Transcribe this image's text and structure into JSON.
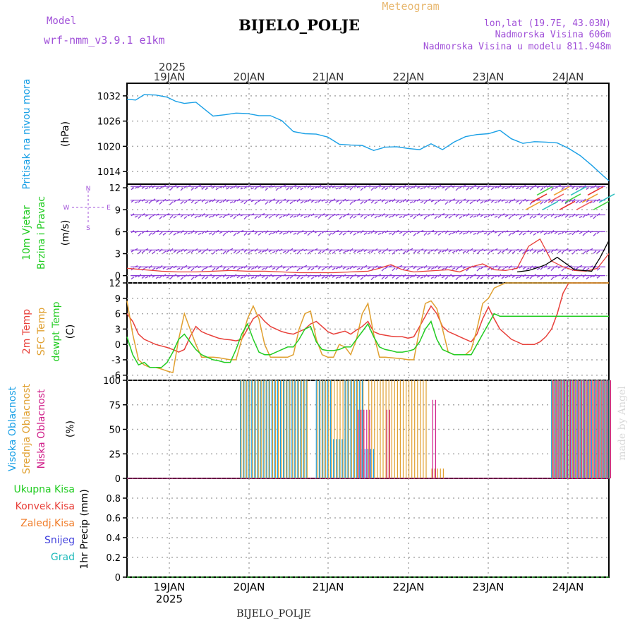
{
  "header": {
    "title": "BIJELO_POLJE",
    "model_label": "Model",
    "model_name": "wrf-nmm_v3.9.1 e1km",
    "product": "Meteogram",
    "location": "lon,lat (19.7E, 43.03N)",
    "altitude": "Nadmorska Visina 606m",
    "model_altitude": "Nadmorska Visina u modelu 811.948m",
    "footer": "BIJELO_POLJE",
    "credit": "made by Angel"
  },
  "time_axis": {
    "year": "2025",
    "days": [
      "19JAN",
      "20JAN",
      "21JAN",
      "22JAN",
      "23JAN",
      "24JAN"
    ],
    "colors": {
      "pressure": "#1aa0e6",
      "temp2m": "#e8403a",
      "sfc": "#e0a030",
      "dewpt": "#22cc22",
      "high": "#1aa0e6",
      "mid": "#e0a030",
      "low": "#d0208a",
      "wind_red": "#e8403a",
      "wind_black": "#000000",
      "barbs": "#8a3cd6"
    }
  },
  "panels": {
    "pressure": {
      "label_line1": "Pritisak na nivou mora",
      "unit": "(hPa)",
      "ticks": [
        "1032",
        "1026",
        "1020",
        "1014"
      ]
    },
    "wind": {
      "label_line1": "10m Vjetar",
      "label_line2": "Brzina i Pravac",
      "unit": "(m/s)",
      "ticks": [
        "12",
        "9",
        "6",
        "3",
        "0"
      ],
      "compass_n": "N",
      "compass_s": "S",
      "compass_w": "W",
      "compass_e": "E"
    },
    "temp": {
      "label_2m": "2m Temp",
      "label_sfc": "SFC Temp",
      "label_dew": "dewpt Temp",
      "unit": "(C)",
      "ticks": [
        "12",
        "9",
        "6",
        "3",
        "0",
        "-3",
        "-6"
      ]
    },
    "cloud": {
      "label_high": "Visoka Oblacnost",
      "label_mid": "Srednja Oblacnost",
      "label_low": "Niska Oblacnost",
      "unit": "(%)",
      "ticks": [
        "100",
        "75",
        "50",
        "25",
        "0"
      ]
    },
    "precip": {
      "labels": [
        "Ukupna Kisa",
        "Konvek.Kisa",
        "Zaledj.Kisa",
        "Snijeg",
        "Grad"
      ],
      "label_colors": [
        "#22cc22",
        "#e8403a",
        "#f07c28",
        "#4444dd",
        "#22bbbb"
      ],
      "unit": "1hr Precip (mm)",
      "ticks": [
        "0.8",
        "0.6",
        "0.4",
        "0.2",
        "0"
      ]
    }
  },
  "chart_data": [
    {
      "type": "line",
      "name": "pressure",
      "ylim": [
        1011,
        1035
      ],
      "series": [
        {
          "name": "Pritisak na nivou mora",
          "x": [
            0,
            3,
            6,
            10,
            14,
            17,
            20,
            24,
            28,
            30,
            34,
            38,
            42,
            46,
            50,
            54,
            58,
            62,
            66,
            70,
            74,
            78,
            82,
            86,
            90,
            94,
            98,
            102,
            106,
            110,
            114,
            118,
            122,
            126,
            130,
            134,
            138,
            142,
            146,
            150,
            154,
            158,
            162,
            166,
            168
          ],
          "values": [
            1031.2,
            1031.0,
            1032.3,
            1032.2,
            1031.7,
            1030.7,
            1030.2,
            1030.5,
            1028.3,
            1027.2,
            1027.5,
            1027.9,
            1027.8,
            1027.3,
            1027.3,
            1026.1,
            1023.5,
            1023.0,
            1022.9,
            1022.2,
            1020.5,
            1020.3,
            1020.2,
            1019.0,
            1019.8,
            1019.9,
            1019.5,
            1019.2,
            1020.6,
            1019.2,
            1021.0,
            1022.3,
            1022.8,
            1023.0,
            1023.8,
            1021.8,
            1020.7,
            1021.1,
            1021.0,
            1020.8,
            1019.5,
            1017.8,
            1015.5,
            1013.0,
            1011.8
          ]
        }
      ]
    },
    {
      "type": "line",
      "name": "wind",
      "ylim": [
        -1,
        12.5
      ],
      "series": [
        {
          "name": "red",
          "x": [
            0,
            6,
            12,
            18,
            24,
            30,
            36,
            42,
            48,
            54,
            60,
            66,
            72,
            78,
            84,
            88,
            92,
            96,
            100,
            104,
            108,
            112,
            116,
            120,
            124,
            128,
            132,
            136,
            138,
            140,
            144,
            148,
            152,
            156,
            160,
            164,
            168
          ],
          "values": [
            1.0,
            0.8,
            0.6,
            0.5,
            0.5,
            0.6,
            0.7,
            0.6,
            0.6,
            0.5,
            0.4,
            0.4,
            0.4,
            0.5,
            0.6,
            1.0,
            1.5,
            0.8,
            0.5,
            0.6,
            0.7,
            0.8,
            0.5,
            1.2,
            1.6,
            0.8,
            0.7,
            1.0,
            2.5,
            4.0,
            5.0,
            2.0,
            1.2,
            0.7,
            0.6,
            1.0,
            3.0
          ]
        },
        {
          "name": "black",
          "x": [
            136,
            140,
            144,
            146,
            150,
            156,
            162,
            165,
            168
          ],
          "values": [
            0.5,
            0.7,
            1.2,
            1.5,
            2.5,
            0.8,
            0.6,
            2.5,
            4.8
          ]
        }
      ]
    },
    {
      "type": "line",
      "name": "temp",
      "ylim": [
        -7,
        12
      ],
      "series": [
        {
          "name": "2m Temp",
          "x": [
            0,
            2,
            4,
            6,
            8,
            10,
            12,
            14,
            16,
            18,
            20,
            22,
            24,
            26,
            28,
            30,
            32,
            34,
            36,
            38,
            40,
            42,
            44,
            46,
            48,
            50,
            52,
            54,
            56,
            58,
            60,
            62,
            64,
            66,
            68,
            70,
            72,
            74,
            76,
            78,
            80,
            82,
            84,
            86,
            88,
            90,
            92,
            94,
            96,
            98,
            100,
            102,
            104,
            106,
            108,
            110,
            112,
            114,
            116,
            118,
            120,
            122,
            124,
            126,
            128,
            130,
            132,
            134,
            136,
            138,
            140,
            142,
            144,
            146,
            148,
            150,
            152,
            154,
            156,
            158,
            160,
            162,
            164,
            166,
            168
          ],
          "values": [
            6.0,
            4.5,
            2.0,
            1.0,
            0.5,
            0.0,
            -0.3,
            -0.6,
            -1.0,
            -1.5,
            -1.0,
            1.5,
            3.5,
            2.5,
            2.0,
            1.6,
            1.2,
            1.0,
            0.9,
            0.7,
            1.0,
            3.0,
            5.0,
            5.8,
            4.5,
            3.5,
            3.0,
            2.5,
            2.2,
            2.0,
            2.5,
            3.0,
            4.0,
            4.5,
            3.5,
            2.5,
            2.0,
            2.3,
            2.6,
            2.0,
            2.8,
            3.5,
            4.5,
            2.5,
            2.0,
            1.8,
            1.6,
            1.5,
            1.5,
            1.2,
            1.5,
            3.5,
            5.5,
            7.5,
            6.0,
            3.5,
            2.5,
            2.0,
            1.5,
            1.0,
            0.5,
            2.0,
            5.0,
            7.3,
            5.0,
            3.0,
            2.0,
            1.0,
            0.5,
            0.0,
            0.0,
            0.0,
            0.5,
            1.5,
            3.0,
            6.0,
            10.0,
            12.0,
            12.0,
            12.0,
            12.0,
            12.0,
            12.0,
            12.0,
            12.0
          ]
        },
        {
          "name": "SFC Temp",
          "x": [
            0,
            2,
            4,
            6,
            8,
            10,
            12,
            14,
            16,
            18,
            20,
            22,
            24,
            26,
            28,
            30,
            32,
            34,
            36,
            38,
            40,
            42,
            44,
            46,
            48,
            50,
            52,
            54,
            56,
            58,
            60,
            62,
            64,
            66,
            68,
            70,
            72,
            74,
            76,
            78,
            80,
            82,
            84,
            86,
            88,
            90,
            92,
            94,
            96,
            98,
            100,
            102,
            104,
            106,
            108,
            110,
            112,
            114,
            116,
            118,
            120,
            122,
            124,
            126,
            128,
            130,
            132,
            134,
            136,
            138,
            140,
            142,
            144,
            146,
            148,
            150,
            152,
            154,
            156,
            158,
            160,
            162,
            164,
            166,
            168
          ],
          "values": [
            8.5,
            2.0,
            -3.0,
            -4.0,
            -4.5,
            -4.5,
            -4.8,
            -5.2,
            -5.5,
            1.0,
            6.0,
            3.0,
            0.0,
            -2.5,
            -2.5,
            -2.5,
            -2.6,
            -2.8,
            -3.0,
            -3.0,
            1.0,
            5.0,
            7.5,
            5.0,
            0.0,
            -2.5,
            -2.5,
            -2.5,
            -2.5,
            -2.0,
            3.0,
            6.0,
            6.5,
            1.0,
            -2.0,
            -2.5,
            -2.5,
            0.0,
            -0.5,
            -2.0,
            1.0,
            6.0,
            8.0,
            2.0,
            -2.5,
            -2.5,
            -2.6,
            -2.7,
            -2.8,
            -3.0,
            -3.0,
            3.0,
            8.0,
            8.5,
            7.0,
            3.0,
            -1.5,
            -2.0,
            -2.0,
            -2.0,
            -1.0,
            3.0,
            8.0,
            9.0,
            11.0,
            11.5,
            12.0,
            12.0,
            12.0,
            12.0,
            12.0,
            12.0,
            12.0,
            12.0,
            12.0,
            12.0,
            12.0,
            12.0,
            12.0,
            12.0,
            12.0,
            12.0,
            12.0,
            12.0,
            12.0
          ]
        },
        {
          "name": "dewpt Temp",
          "x": [
            0,
            2,
            4,
            6,
            8,
            10,
            12,
            14,
            16,
            18,
            20,
            22,
            24,
            26,
            28,
            30,
            32,
            34,
            36,
            38,
            40,
            42,
            44,
            46,
            48,
            50,
            52,
            54,
            56,
            58,
            60,
            62,
            64,
            66,
            68,
            70,
            72,
            74,
            76,
            78,
            80,
            82,
            84,
            86,
            88,
            90,
            92,
            94,
            96,
            98,
            100,
            102,
            104,
            106,
            108,
            110,
            112,
            114,
            116,
            118,
            120,
            122,
            124,
            126,
            128,
            130,
            132,
            134,
            136,
            138,
            140,
            142,
            144,
            146,
            148,
            150,
            152,
            154,
            156,
            158,
            160,
            162,
            164,
            166,
            168
          ],
          "values": [
            1.5,
            -2.0,
            -4.0,
            -3.5,
            -4.5,
            -4.5,
            -4.5,
            -3.5,
            -1.5,
            1.0,
            2.0,
            0.5,
            -1.0,
            -2.0,
            -2.5,
            -3.0,
            -3.2,
            -3.5,
            -3.5,
            -1.0,
            2.0,
            4.0,
            1.0,
            -1.5,
            -2.0,
            -2.0,
            -1.5,
            -1.0,
            -0.5,
            -0.5,
            1.0,
            3.0,
            3.5,
            0.5,
            -1.0,
            -1.2,
            -1.2,
            -1.0,
            -0.5,
            -0.5,
            1.0,
            2.5,
            4.0,
            1.5,
            -0.5,
            -1.0,
            -1.2,
            -1.5,
            -1.5,
            -1.3,
            -1.0,
            0.5,
            3.0,
            4.5,
            1.0,
            -1.0,
            -1.5,
            -2.0,
            -2.0,
            -2.0,
            -2.0,
            0.0,
            2.0,
            4.0,
            6.0,
            5.5,
            5.5,
            5.5,
            5.5,
            5.5,
            5.5,
            5.5,
            5.5,
            5.5,
            5.5,
            5.5,
            5.5,
            5.5,
            5.5,
            5.5,
            5.5,
            5.5,
            5.5,
            5.5,
            5.5
          ]
        }
      ]
    },
    {
      "type": "bar",
      "name": "cloud",
      "ylim": [
        0,
        100
      ],
      "series": [
        {
          "name": "Visoka Oblacnost",
          "runs": [
            [
              39.5,
              62.5,
              100
            ],
            [
              66,
              71,
              100
            ],
            [
              71,
              76,
              40
            ],
            [
              76,
              82,
              100
            ],
            [
              82,
              86,
              30
            ],
            [
              148,
              168,
              100
            ]
          ]
        },
        {
          "name": "Srednja Oblacnost",
          "runs": [
            [
              39.5,
              62.5,
              100
            ],
            [
              66,
              82,
              100
            ],
            [
              84,
              104,
              100
            ],
            [
              106,
              110,
              10
            ],
            [
              148,
              168,
              100
            ]
          ]
        },
        {
          "name": "Niska Oblacnost",
          "runs": [
            [
              80,
              84,
              70
            ],
            [
              90,
              91,
              70
            ],
            [
              106,
              107,
              80
            ],
            [
              148,
              168,
              100
            ]
          ]
        }
      ]
    },
    {
      "type": "line",
      "name": "precip",
      "ylim": [
        0,
        1
      ],
      "series": [
        {
          "name": "Ukupna Kisa",
          "x": [
            0,
            168
          ],
          "values": [
            0,
            0
          ]
        }
      ]
    }
  ]
}
